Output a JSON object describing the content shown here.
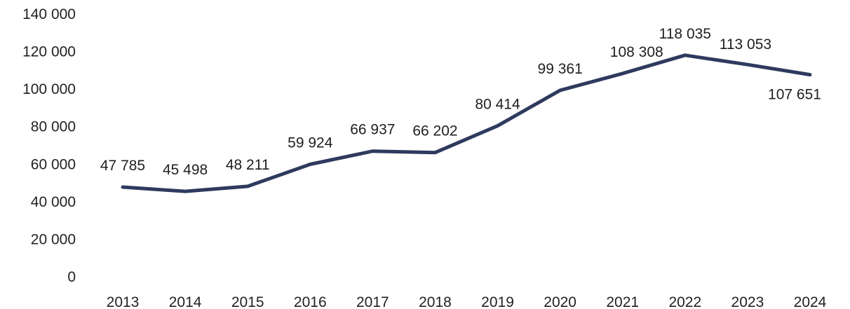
{
  "chart_data": {
    "type": "line",
    "x": [
      "2013",
      "2014",
      "2015",
      "2016",
      "2017",
      "2018",
      "2019",
      "2020",
      "2021",
      "2022",
      "2023",
      "2024"
    ],
    "series": [
      {
        "values": [
          47785,
          45498,
          48211,
          59924,
          66937,
          66202,
          80414,
          99361,
          108308,
          118035,
          113053,
          107651
        ],
        "labels": [
          "47 785",
          "45 498",
          "48 211",
          "59 924",
          "66 937",
          "66 202",
          "80 414",
          "99 361",
          "108 308",
          "118 035",
          "113 053",
          "107 651"
        ]
      }
    ],
    "y_ticks": [
      0,
      20000,
      40000,
      60000,
      80000,
      100000,
      120000,
      140000
    ],
    "y_tick_labels": [
      "0",
      "20 000",
      "40 000",
      "60 000",
      "80 000",
      "100 000",
      "120 000",
      "140 000"
    ],
    "ylim": [
      0,
      140000
    ],
    "grid": false,
    "legend": "none",
    "line_color": "#2e3a5e"
  }
}
